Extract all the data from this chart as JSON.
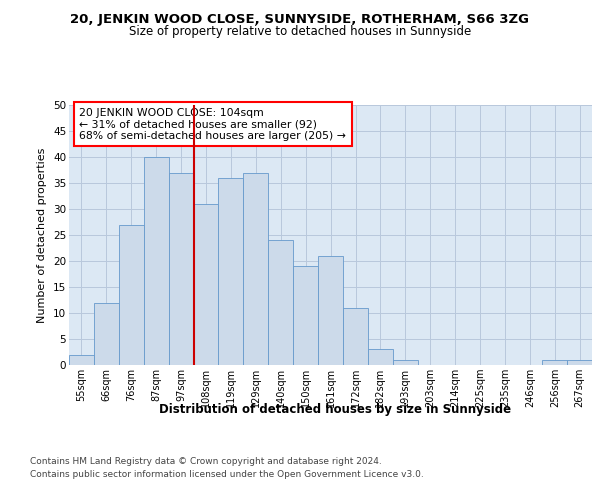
{
  "title1": "20, JENKIN WOOD CLOSE, SUNNYSIDE, ROTHERHAM, S66 3ZG",
  "title2": "Size of property relative to detached houses in Sunnyside",
  "xlabel": "Distribution of detached houses by size in Sunnyside",
  "ylabel": "Number of detached properties",
  "footnote1": "Contains HM Land Registry data © Crown copyright and database right 2024.",
  "footnote2": "Contains public sector information licensed under the Open Government Licence v3.0.",
  "annotation_line1": "20 JENKIN WOOD CLOSE: 104sqm",
  "annotation_line2": "← 31% of detached houses are smaller (92)",
  "annotation_line3": "68% of semi-detached houses are larger (205) →",
  "bar_labels": [
    "55sqm",
    "66sqm",
    "76sqm",
    "87sqm",
    "97sqm",
    "108sqm",
    "119sqm",
    "129sqm",
    "140sqm",
    "150sqm",
    "161sqm",
    "172sqm",
    "182sqm",
    "193sqm",
    "203sqm",
    "214sqm",
    "225sqm",
    "235sqm",
    "246sqm",
    "256sqm",
    "267sqm"
  ],
  "bar_values": [
    2,
    12,
    27,
    40,
    37,
    31,
    36,
    37,
    24,
    19,
    21,
    11,
    3,
    1,
    0,
    0,
    0,
    0,
    0,
    1,
    1
  ],
  "bar_color": "#ccdaea",
  "bar_edgecolor": "#6699cc",
  "bar_linewidth": 0.6,
  "redline_index": 5,
  "redline_color": "#cc0000",
  "ylim": [
    0,
    50
  ],
  "yticks": [
    0,
    5,
    10,
    15,
    20,
    25,
    30,
    35,
    40,
    45,
    50
  ],
  "grid_color": "#b8c8dc",
  "background_color": "#dce8f4",
  "title1_fontsize": 9.5,
  "title2_fontsize": 8.5,
  "annotation_fontsize": 7.8,
  "ylabel_fontsize": 8,
  "xlabel_fontsize": 8.5,
  "xtick_fontsize": 7,
  "ytick_fontsize": 7.5,
  "footnote_fontsize": 6.5
}
